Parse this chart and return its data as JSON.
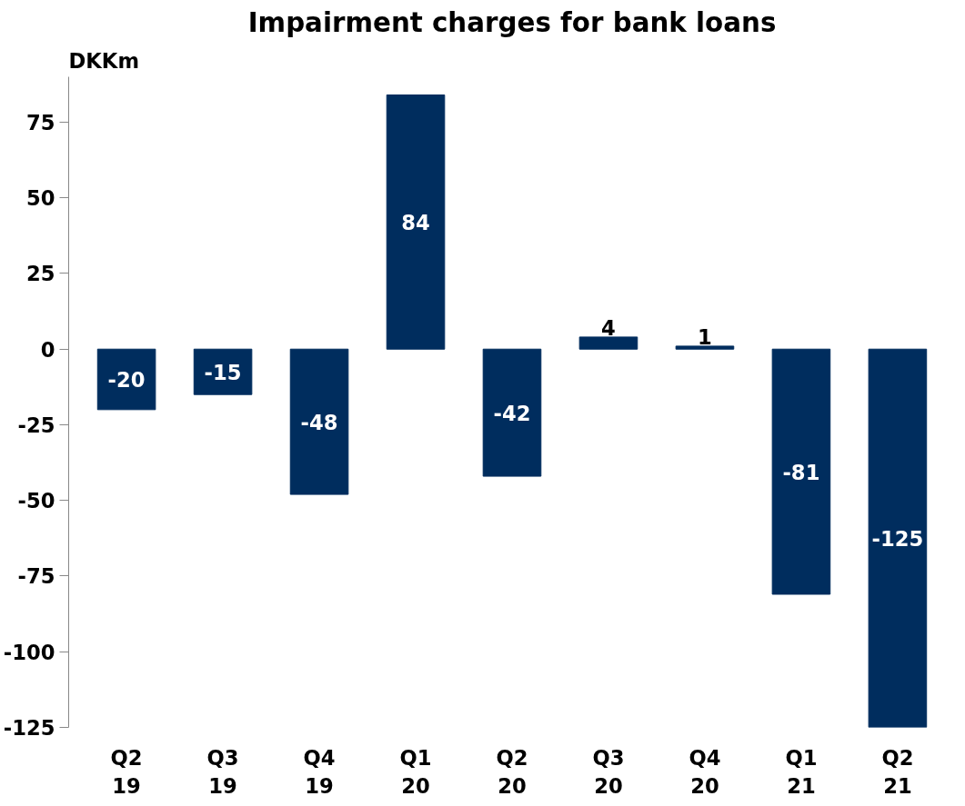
{
  "chart_data": {
    "type": "bar",
    "title": "Impairment charges for bank loans",
    "ylabel": "DKKm",
    "categories": [
      "Q2\n19",
      "Q3\n19",
      "Q4\n19",
      "Q1\n20",
      "Q2\n20",
      "Q3\n20",
      "Q4\n20",
      "Q1\n21",
      "Q2\n21"
    ],
    "values": [
      -20,
      -15,
      -48,
      84,
      -42,
      4,
      1,
      -81,
      -125
    ],
    "color": "#002d5e",
    "data_labels": true,
    "ylim": [
      -125,
      90
    ],
    "yticks": [
      -125,
      -100,
      -75,
      -50,
      -25,
      0,
      25,
      50,
      75
    ],
    "grid": false
  }
}
